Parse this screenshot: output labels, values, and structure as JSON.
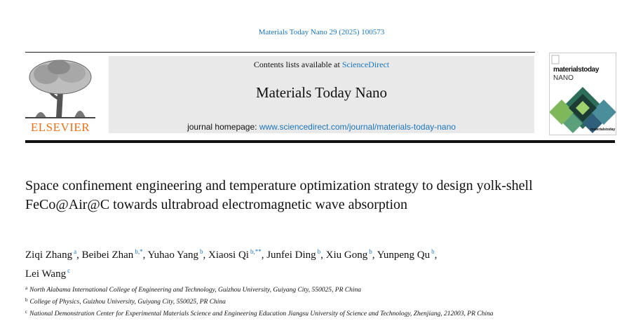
{
  "header": {
    "citation": "Materials Today Nano 29 (2025) 100573",
    "contents_prefix": "Contents lists available at ",
    "contents_link": "ScienceDirect",
    "journal": "Materials Today Nano",
    "homepage_prefix": "journal homepage: ",
    "homepage_link": "www.sciencedirect.com/journal/materials-today-nano",
    "publisher": "ELSEVIER",
    "cover_title": "materialstoday",
    "cover_subtitle": "NANO",
    "cover_footer": "materialstoday"
  },
  "article": {
    "title": "Space confinement engineering and temperature optimization strategy to design yolk-shell FeCo@Air@C towards ultrabroad electromagnetic wave absorption",
    "author_separator": ",",
    "authors": [
      {
        "name": "Ziqi Zhang",
        "mark": "a"
      },
      {
        "name": "Beibei Zhan",
        "mark": "b,*"
      },
      {
        "name": "Yuhao Yang",
        "mark": "b"
      },
      {
        "name": "Xiaosi Qi",
        "mark": "b,**"
      },
      {
        "name": "Junfei Ding",
        "mark": "b"
      },
      {
        "name": "Xiu Gong",
        "mark": "b"
      },
      {
        "name": "Yunpeng Qu",
        "mark": "b"
      },
      {
        "name": "Lei Wang",
        "mark": "c"
      }
    ],
    "affiliations": [
      {
        "mark": "a",
        "text": "North Alabama International College of Engineering and Technology, Guizhou University, Guiyang City, 550025, PR China"
      },
      {
        "mark": "b",
        "text": "College of Physics, Guizhou University, Guiyang City, 550025, PR China"
      },
      {
        "mark": "c",
        "text": "National Demonstration Center for Experimental Materials Science and Engineering Education Jiangsu University of Science and Technology, Zhenjiang, 212003, PR China"
      }
    ]
  }
}
